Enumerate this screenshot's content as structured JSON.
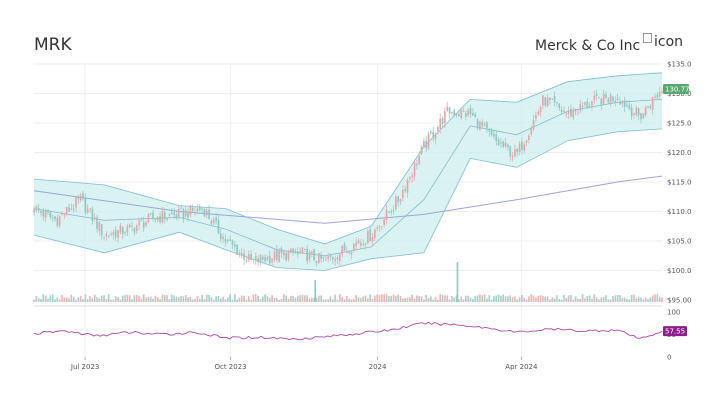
{
  "header": {
    "ticker": "MRK",
    "company": "Merck & Co Inc",
    "icon_alt": "icon",
    "icon_name": "broken-image-icon"
  },
  "colors": {
    "up": "#e8a4a4",
    "down": "#8cc7c0",
    "price_line": "#333333",
    "band_fill": "#cfeeee",
    "band_line": "#7fbcd4",
    "sma_long": "#9aa6d6",
    "rsi_line": "#a64ca6",
    "price_badge": "#5aa870",
    "rsi_badge": "#8a1e8a"
  },
  "chart_data": [
    {
      "type": "line",
      "panel": "price",
      "subtype": "candlestick with bollinger bands and moving averages",
      "ylim": [
        95,
        135
      ],
      "y_ticks": [
        "$135.0",
        "$130.0",
        "$125.0",
        "$120.0",
        "$115.0",
        "$110.0",
        "$105.0",
        "$100.0",
        "$95.00"
      ],
      "y_tick_values": [
        135,
        130,
        125,
        120,
        115,
        110,
        105,
        100,
        95
      ],
      "x_ticks": [
        "Jul 2023",
        "Oct 2023",
        "2024",
        "Apr 2024"
      ],
      "x_tick_values": [
        "2023-07-03",
        "2023-10-02",
        "2024-01-02",
        "2024-04-01"
      ],
      "x_range": [
        "2023-06-01",
        "2024-06-28"
      ],
      "last_price_label": "130.77",
      "last_price": 130.77,
      "close_series": {
        "x": [
          "2023-06-01",
          "2023-06-15",
          "2023-06-30",
          "2023-07-15",
          "2023-07-31",
          "2023-08-15",
          "2023-08-31",
          "2023-09-15",
          "2023-09-29",
          "2023-10-15",
          "2023-10-31",
          "2023-11-15",
          "2023-11-30",
          "2023-12-15",
          "2023-12-29",
          "2024-01-15",
          "2024-01-31",
          "2024-02-15",
          "2024-02-29",
          "2024-03-15",
          "2024-03-29",
          "2024-04-15",
          "2024-04-30",
          "2024-05-15",
          "2024-05-31",
          "2024-06-14",
          "2024-06-28"
        ],
        "y": [
          110.5,
          108.5,
          112.0,
          106.0,
          107.0,
          109.0,
          109.5,
          110.5,
          105.0,
          101.5,
          102.5,
          103.0,
          101.5,
          104.0,
          106.0,
          112.0,
          121.0,
          127.0,
          126.5,
          122.0,
          119.5,
          129.0,
          126.5,
          128.5,
          129.5,
          126.0,
          130.77
        ]
      },
      "bollinger_upper": {
        "x": [
          "2023-06-01",
          "2023-07-15",
          "2023-08-31",
          "2023-09-29",
          "2023-10-31",
          "2023-11-30",
          "2023-12-29",
          "2024-01-31",
          "2024-02-29",
          "2024-03-29",
          "2024-04-30",
          "2024-05-31",
          "2024-06-28"
        ],
        "y": [
          115.5,
          114.5,
          111.0,
          110.5,
          107.0,
          104.5,
          107.5,
          121.0,
          129.0,
          128.5,
          132.0,
          133.0,
          133.5
        ]
      },
      "bollinger_lower": {
        "x": [
          "2023-06-01",
          "2023-07-15",
          "2023-08-31",
          "2023-09-29",
          "2023-10-31",
          "2023-11-30",
          "2023-12-29",
          "2024-01-31",
          "2024-02-29",
          "2024-03-29",
          "2024-04-30",
          "2024-05-31",
          "2024-06-28"
        ],
        "y": [
          106.0,
          103.0,
          106.5,
          103.5,
          100.5,
          100.0,
          102.0,
          103.0,
          119.0,
          117.5,
          122.0,
          123.5,
          124.0
        ]
      },
      "bollinger_middle": {
        "x": [
          "2023-06-01",
          "2023-07-15",
          "2023-08-31",
          "2023-09-29",
          "2023-10-31",
          "2023-11-30",
          "2023-12-29",
          "2024-01-31",
          "2024-02-29",
          "2024-03-29",
          "2024-04-30",
          "2024-05-31",
          "2024-06-28"
        ],
        "y": [
          110.5,
          108.5,
          109.0,
          107.0,
          103.5,
          102.5,
          104.0,
          112.0,
          124.5,
          123.0,
          127.0,
          128.5,
          129.0
        ]
      },
      "sma_long": {
        "x": [
          "2023-06-01",
          "2023-08-31",
          "2023-11-30",
          "2024-01-31",
          "2024-03-29",
          "2024-05-31",
          "2024-06-28"
        ],
        "y": [
          113.5,
          110.0,
          108.0,
          109.5,
          112.0,
          115.0,
          116.0
        ]
      }
    },
    {
      "type": "bar",
      "panel": "volume",
      "description": "daily volume bars",
      "x_range": [
        "2023-06-01",
        "2024-06-28"
      ],
      "spikes": [
        {
          "x": "2023-11-24",
          "relative": 0.55
        },
        {
          "x": "2024-02-21",
          "relative": 1.0
        }
      ]
    },
    {
      "type": "line",
      "panel": "rsi",
      "ylim": [
        0,
        100
      ],
      "y_ticks": [
        "100",
        "50",
        "0"
      ],
      "y_tick_values": [
        100,
        50,
        0
      ],
      "last_value_label": "57.55",
      "last_value": 57.55,
      "series": {
        "x": [
          "2023-06-01",
          "2023-06-20",
          "2023-07-10",
          "2023-07-31",
          "2023-08-20",
          "2023-09-10",
          "2023-09-29",
          "2023-10-20",
          "2023-11-10",
          "2023-11-30",
          "2023-12-20",
          "2024-01-10",
          "2024-01-31",
          "2024-02-20",
          "2024-03-10",
          "2024-03-29",
          "2024-04-20",
          "2024-05-10",
          "2024-05-31",
          "2024-06-14",
          "2024-06-28"
        ],
        "y": [
          52,
          58,
          47,
          55,
          50,
          55,
          42,
          44,
          40,
          45,
          52,
          60,
          75,
          72,
          65,
          55,
          62,
          58,
          60,
          40,
          57.55
        ]
      }
    }
  ]
}
